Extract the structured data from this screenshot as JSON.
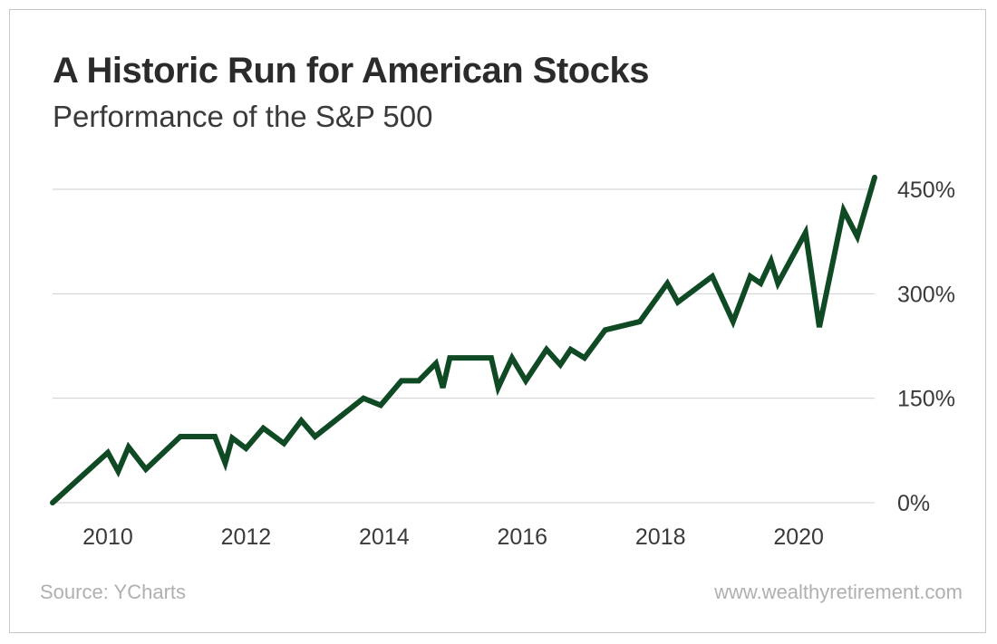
{
  "chart_data": {
    "type": "line",
    "title": "A Historic Run for American Stocks",
    "subtitle": "Performance of the S&P 500",
    "xlabel": "",
    "ylabel": "",
    "x_ticks": [
      "2010",
      "2012",
      "2014",
      "2016",
      "2018",
      "2020"
    ],
    "x_tick_values": [
      2010,
      2012,
      2014,
      2016,
      2018,
      2020
    ],
    "xlim": [
      2009.2,
      2021.1
    ],
    "y_ticks": [
      "0%",
      "150%",
      "300%",
      "450%"
    ],
    "y_tick_values": [
      0,
      150,
      300,
      450
    ],
    "ylim": [
      0,
      450
    ],
    "grid": true,
    "color": "#0f4a24",
    "series": [
      {
        "x": [
          2009.2,
          2010.0,
          2010.15,
          2010.3,
          2010.55,
          2011.05,
          2011.55,
          2011.7,
          2011.8,
          2012.0,
          2012.25,
          2012.55,
          2012.8,
          2013.0,
          2013.7,
          2013.95,
          2014.25,
          2014.5,
          2014.75,
          2014.85,
          2014.95,
          2015.55,
          2015.65,
          2015.85,
          2016.05,
          2016.35,
          2016.55,
          2016.7,
          2016.9,
          2017.2,
          2017.7,
          2018.1,
          2018.25,
          2018.75,
          2019.05,
          2019.3,
          2019.45,
          2019.6,
          2019.7,
          2020.1,
          2020.3,
          2020.65,
          2020.85,
          2021.1
        ],
        "y": [
          0,
          72,
          45,
          80,
          48,
          95,
          95,
          57,
          93,
          78,
          107,
          85,
          118,
          95,
          150,
          140,
          175,
          175,
          200,
          165,
          208,
          208,
          165,
          208,
          175,
          220,
          198,
          220,
          208,
          248,
          260,
          315,
          288,
          325,
          260,
          325,
          315,
          347,
          315,
          388,
          252,
          420,
          382,
          467
        ]
      }
    ]
  },
  "footer": {
    "source": "Source: YCharts",
    "site": "www.wealthyretirement.com"
  }
}
